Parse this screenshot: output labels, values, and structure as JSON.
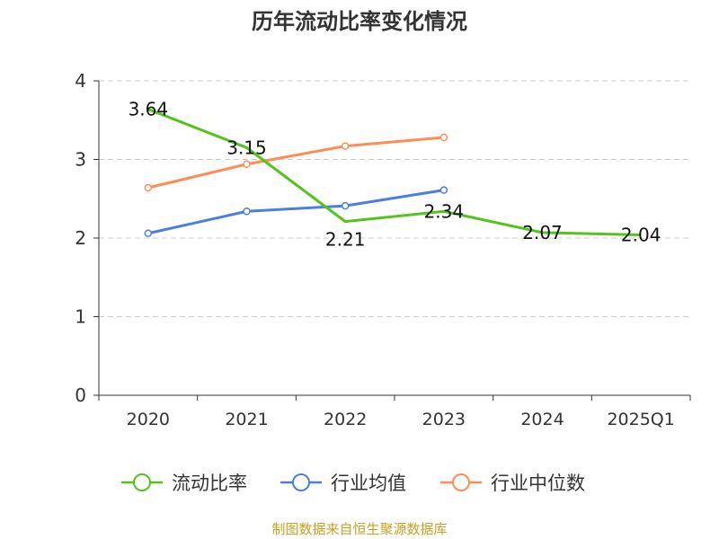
{
  "chart_data": {
    "type": "line",
    "title": "历年流动比率变化情况",
    "categories": [
      "2020",
      "2021",
      "2022",
      "2023",
      "2024",
      "2025Q1"
    ],
    "ylim": [
      0,
      4
    ],
    "yticks": [
      "0",
      "1",
      "2",
      "3",
      "4"
    ],
    "grid": true,
    "legend_position": "bottom",
    "series": [
      {
        "name": "流动比率",
        "color": "#52c41a",
        "values": [
          3.64,
          3.15,
          2.21,
          2.34,
          2.07,
          2.04
        ],
        "labels": [
          "3.64",
          "3.15",
          "2.21",
          "2.34",
          "2.07",
          "2.04"
        ],
        "markers": false
      },
      {
        "name": "行业均值",
        "color": "#4a7fe0",
        "values": [
          2.06,
          2.34,
          2.41,
          2.61,
          null,
          null
        ],
        "markers": true
      },
      {
        "name": "行业中位数",
        "color": "#ff8c55",
        "values": [
          2.64,
          2.94,
          3.17,
          3.28,
          null,
          null
        ],
        "markers": true
      }
    ]
  },
  "footer": "制图数据来自恒生聚源数据库"
}
